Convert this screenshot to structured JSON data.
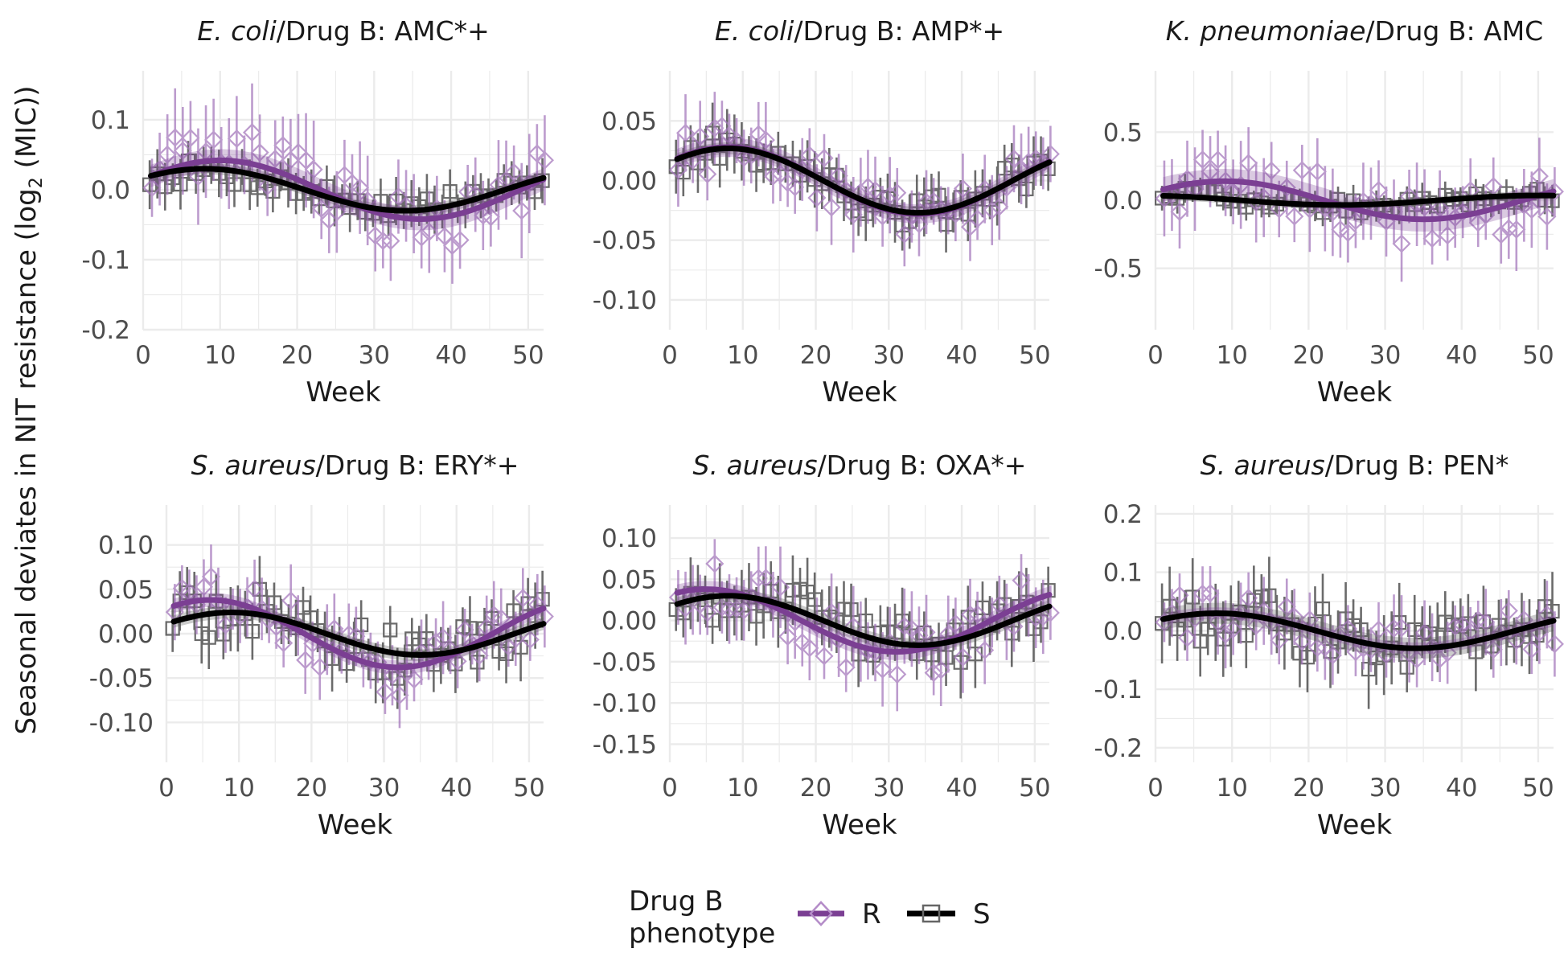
{
  "figure": {
    "ylabel_prefix": "Seasonal deviates in NIT resistance (log",
    "ylabel_sub": "2",
    "ylabel_suffix": " (MIC))",
    "legend": {
      "title_line1": "Drug B",
      "title_line2": "phenotype",
      "items": [
        {
          "label": "R",
          "color": "#7b3f93",
          "marker": "diamond"
        },
        {
          "label": "S",
          "color": "#000000",
          "marker": "square"
        }
      ]
    },
    "colors": {
      "R": "#7b3f93",
      "S": "#000000",
      "grid": "#ebebeb"
    }
  },
  "chart_data": [
    {
      "type": "scatter",
      "title_species": "E. coli",
      "title_rest": "/Drug B: AMC*+",
      "xlabel": "Week",
      "xlim": [
        0,
        52
      ],
      "xticks": [
        0,
        10,
        20,
        30,
        40,
        50
      ],
      "ylim": [
        -0.2,
        0.17
      ],
      "yticks": [
        -0.2,
        -0.1,
        0.0,
        0.1
      ],
      "ytick_labels": [
        "-0.2",
        "-0.1",
        "0.0",
        "0.1"
      ],
      "grid": true,
      "series": [
        {
          "name": "R",
          "fit_amplitude": 0.042,
          "fit_peak_week": 10,
          "fit_ci": 0.016,
          "scatter_amplitude": 0.05,
          "scatter_noise": 0.04,
          "err": 0.055
        },
        {
          "name": "S",
          "fit_amplitude": 0.03,
          "fit_peak_week": 8,
          "fit_ci": 0.008,
          "scatter_amplitude": 0.025,
          "scatter_noise": 0.018,
          "err": 0.028
        }
      ]
    },
    {
      "type": "scatter",
      "title_species": "E. coli",
      "title_rest": "/Drug B: AMP*+",
      "xlabel": "Week",
      "xlim": [
        0,
        52
      ],
      "xticks": [
        0,
        10,
        20,
        30,
        40,
        50
      ],
      "ylim": [
        -0.125,
        0.092
      ],
      "yticks": [
        -0.1,
        -0.05,
        0.0,
        0.05
      ],
      "ytick_labels": [
        "-0.10",
        "-0.05",
        "0.00",
        "0.05"
      ],
      "grid": true,
      "series": [
        {
          "name": "R",
          "fit_amplitude": 0.028,
          "fit_peak_week": 8,
          "fit_ci": 0.008,
          "scatter_amplitude": 0.028,
          "scatter_noise": 0.022,
          "err": 0.025
        },
        {
          "name": "S",
          "fit_amplitude": 0.027,
          "fit_peak_week": 8,
          "fit_ci": 0.005,
          "scatter_amplitude": 0.027,
          "scatter_noise": 0.014,
          "err": 0.02
        }
      ]
    },
    {
      "type": "scatter",
      "title_species": "K. pneumoniae",
      "title_rest": "/Drug B: AMC",
      "xlabel": "Week",
      "xlim": [
        0,
        52
      ],
      "xticks": [
        0,
        10,
        20,
        30,
        40,
        50
      ],
      "ylim": [
        -0.95,
        0.95
      ],
      "yticks": [
        -0.5,
        0.0,
        0.5
      ],
      "ytick_labels": [
        "-0.5",
        "0.0",
        "0.5"
      ],
      "grid": true,
      "series": [
        {
          "name": "R",
          "fit_amplitude": 0.14,
          "fit_peak_week": 9,
          "fit_ci": 0.09,
          "scatter_amplitude": 0.15,
          "scatter_noise": 0.2,
          "err": 0.25
        },
        {
          "name": "S",
          "fit_amplitude": 0.035,
          "fit_peak_week": 50,
          "fit_ci": 0.03,
          "scatter_amplitude": 0.04,
          "scatter_noise": 0.06,
          "err": 0.09
        }
      ]
    },
    {
      "type": "scatter",
      "title_species": "S. aureus",
      "title_rest": "/Drug B: ERY*+",
      "xlabel": "Week",
      "xlim": [
        0,
        52
      ],
      "xticks": [
        0,
        10,
        20,
        30,
        40,
        50
      ],
      "ylim": [
        -0.145,
        0.145
      ],
      "yticks": [
        -0.1,
        -0.05,
        0.0,
        0.05,
        0.1
      ],
      "ytick_labels": [
        "-0.10",
        "-0.05",
        "0.00",
        "0.05",
        "0.10"
      ],
      "grid": true,
      "series": [
        {
          "name": "R",
          "fit_amplitude": 0.038,
          "fit_peak_week": 6,
          "fit_ci": 0.008,
          "scatter_amplitude": 0.04,
          "scatter_noise": 0.03,
          "err": 0.032
        },
        {
          "name": "S",
          "fit_amplitude": 0.024,
          "fit_peak_week": 9,
          "fit_ci": 0.007,
          "scatter_amplitude": 0.025,
          "scatter_noise": 0.028,
          "err": 0.03
        }
      ]
    },
    {
      "type": "scatter",
      "title_species": "S. aureus",
      "title_rest": "/Drug B: OXA*+",
      "xlabel": "Week",
      "xlim": [
        0,
        52
      ],
      "xticks": [
        0,
        10,
        20,
        30,
        40,
        50
      ],
      "ylim": [
        -0.172,
        0.14
      ],
      "yticks": [
        -0.15,
        -0.1,
        -0.05,
        0.0,
        0.05,
        0.1
      ],
      "ytick_labels": [
        "-0.15",
        "-0.10",
        "-0.05",
        "0.00",
        "0.05",
        "0.10"
      ],
      "grid": true,
      "series": [
        {
          "name": "R",
          "fit_amplitude": 0.038,
          "fit_peak_week": 5,
          "fit_ci": 0.01,
          "scatter_amplitude": 0.04,
          "scatter_noise": 0.035,
          "err": 0.038
        },
        {
          "name": "S",
          "fit_amplitude": 0.03,
          "fit_peak_week": 8,
          "fit_ci": 0.008,
          "scatter_amplitude": 0.03,
          "scatter_noise": 0.03,
          "err": 0.034
        }
      ]
    },
    {
      "type": "scatter",
      "title_species": "S. aureus",
      "title_rest": "/Drug B: PEN*",
      "xlabel": "Week",
      "xlim": [
        0,
        52
      ],
      "xticks": [
        0,
        10,
        20,
        30,
        40,
        50
      ],
      "ylim": [
        -0.225,
        0.215
      ],
      "yticks": [
        -0.2,
        -0.1,
        0.0,
        0.1,
        0.2
      ],
      "ytick_labels": [
        "-0.2",
        "-0.1",
        "0.0",
        "0.1",
        "0.2"
      ],
      "grid": true,
      "series": [
        {
          "name": "R",
          "fit_amplitude": 0.03,
          "fit_peak_week": 8,
          "fit_ci": 0.01,
          "scatter_amplitude": 0.03,
          "scatter_noise": 0.04,
          "err": 0.045
        },
        {
          "name": "S",
          "fit_amplitude": 0.03,
          "fit_peak_week": 8,
          "fit_ci": 0.018,
          "scatter_amplitude": 0.03,
          "scatter_noise": 0.05,
          "err": 0.055
        }
      ]
    }
  ]
}
